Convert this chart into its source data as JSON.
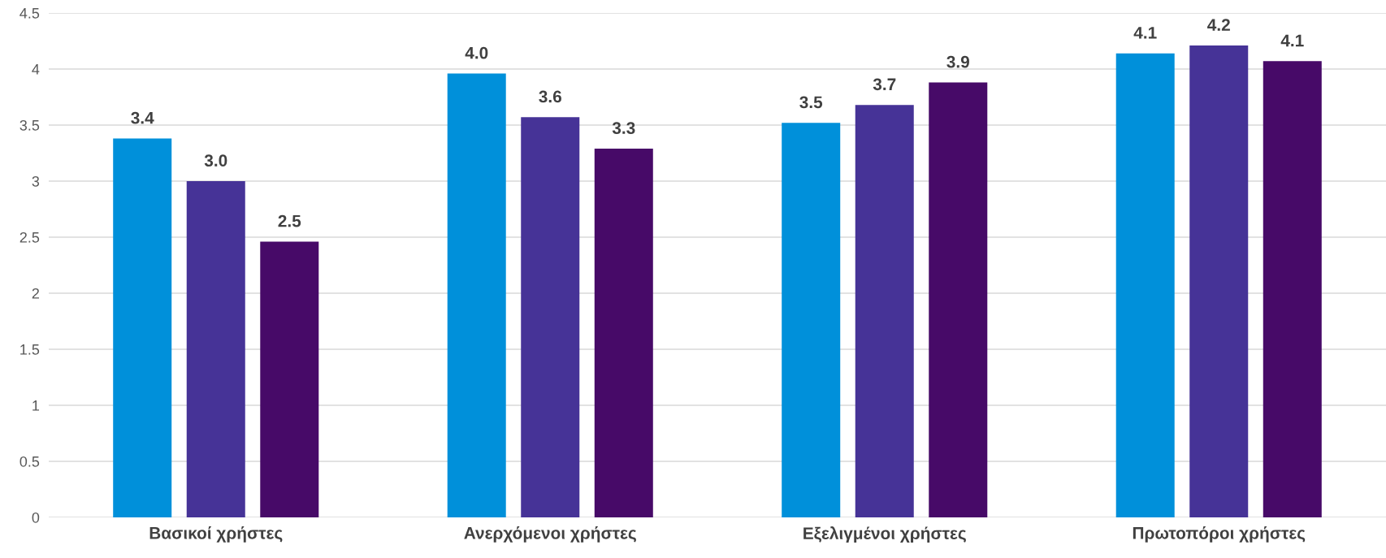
{
  "chart_data": {
    "type": "bar",
    "categories": [
      "Βασικοί χρήστες",
      "Ανερχόμενοι χρήστες",
      "Εξελιγμένοι χρήστες",
      "Πρωτοπόροι χρήστες"
    ],
    "series": [
      {
        "color": "#0090da",
        "values": [
          3.38,
          3.96,
          3.52,
          4.14
        ],
        "value_labels": [
          "3.4",
          "4.0",
          "3.5",
          "4.1"
        ]
      },
      {
        "color": "#463397",
        "values": [
          3.0,
          3.57,
          3.68,
          4.21
        ],
        "value_labels": [
          "3.0",
          "3.6",
          "3.7",
          "4.2"
        ]
      },
      {
        "color": "#470a68",
        "values": [
          2.46,
          3.29,
          3.88,
          4.07
        ],
        "value_labels": [
          "2.5",
          "3.3",
          "3.9",
          "4.1"
        ]
      }
    ],
    "ylim": [
      0,
      4.5
    ],
    "yticks": [
      0,
      0.5,
      1,
      1.5,
      2,
      2.5,
      3,
      3.5,
      4,
      4.5
    ],
    "grid": "y",
    "legend": false
  }
}
